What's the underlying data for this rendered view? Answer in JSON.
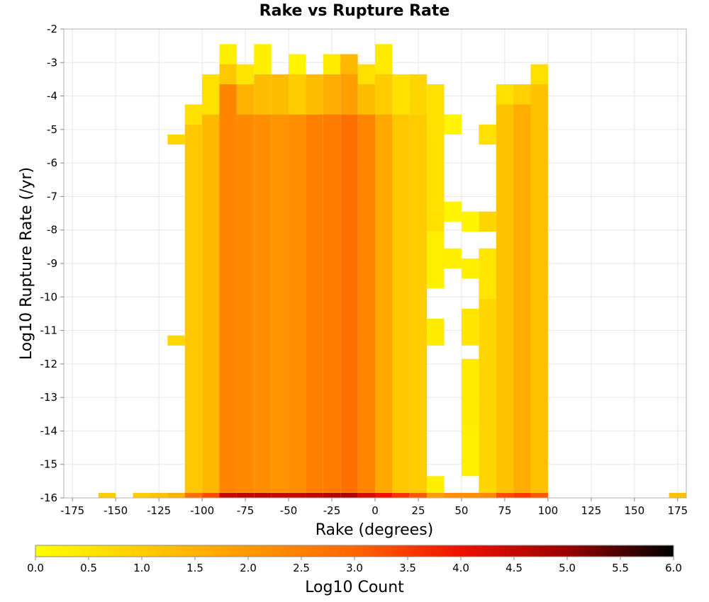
{
  "chart_data": {
    "type": "heatmap",
    "title": "Rake vs Rupture Rate",
    "xlabel": "Rake (degrees)",
    "ylabel": "Log10 Rupture Rate (/yr)",
    "colorbar_label": "Log10 Count",
    "xlim": [
      -180,
      180
    ],
    "ylim": [
      -16,
      -2
    ],
    "clim": [
      0,
      6
    ],
    "x_bin_width": 10,
    "y_bin_width": 0.3,
    "grid": true,
    "colormap": [
      "#ffff00",
      "#ffcc00",
      "#ff9900",
      "#ff6600",
      "#ee1100",
      "#990000",
      "#000000"
    ],
    "x_ticks": [
      "-175",
      "-150",
      "-125",
      "-100",
      "-75",
      "-50",
      "-25",
      "0",
      "25",
      "50",
      "75",
      "100",
      "125",
      "150",
      "175"
    ],
    "y_ticks": [
      "-2",
      "-3",
      "-4",
      "-5",
      "-6",
      "-7",
      "-8",
      "-9",
      "-10",
      "-11",
      "-12",
      "-13",
      "-14",
      "-15",
      "-16"
    ],
    "colorbar_ticks": [
      "0.0",
      "0.5",
      "1.0",
      "1.5",
      "2.0",
      "2.5",
      "3.0",
      "3.5",
      "4.0",
      "4.5",
      "5.0",
      "5.5",
      "6.0"
    ],
    "columns": [
      {
        "x": -155,
        "segments": [
          [
            -16,
            -16,
            1.0
          ]
        ]
      },
      {
        "x": -135,
        "segments": [
          [
            -16,
            -16,
            1.0
          ]
        ]
      },
      {
        "x": -125,
        "segments": [
          [
            -16,
            -16,
            1.2
          ]
        ]
      },
      {
        "x": -115,
        "segments": [
          [
            -16,
            -16,
            1.5
          ],
          [
            -11.3,
            -11.3,
            0.8
          ],
          [
            -5.3,
            -5.3,
            0.8
          ]
        ]
      },
      {
        "x": -105,
        "segments": [
          [
            -16,
            -16,
            2.8
          ],
          [
            -15.8,
            -5,
            1.1
          ],
          [
            -4.7,
            -4.4,
            0.6
          ]
        ]
      },
      {
        "x": -95,
        "segments": [
          [
            -16,
            -16,
            3.3
          ],
          [
            -15.8,
            -4.7,
            1.4
          ],
          [
            -4.4,
            -3.5,
            0.6
          ]
        ]
      },
      {
        "x": -85,
        "segments": [
          [
            -16,
            -16,
            4.5
          ],
          [
            -15.8,
            -3.8,
            2.4
          ],
          [
            -3.5,
            -3.0,
            1.1
          ],
          [
            -2.9,
            -2.6,
            0.3
          ]
        ]
      },
      {
        "x": -75,
        "segments": [
          [
            -16,
            -16,
            4.6
          ],
          [
            -15.8,
            -4.7,
            2.3
          ],
          [
            -4.4,
            -3.8,
            1.5
          ],
          [
            -3.5,
            -3.2,
            0.5
          ]
        ]
      },
      {
        "x": -65,
        "segments": [
          [
            -16,
            -16,
            4.6
          ],
          [
            -15.8,
            -4.7,
            2.2
          ],
          [
            -4.4,
            -3.5,
            1.3
          ],
          [
            -3.2,
            -2.6,
            0.3
          ]
        ]
      },
      {
        "x": -55,
        "segments": [
          [
            -16,
            -16,
            4.5
          ],
          [
            -15.8,
            -4.7,
            2.1
          ],
          [
            -4.4,
            -3.5,
            1.3
          ]
        ]
      },
      {
        "x": -45,
        "segments": [
          [
            -16,
            -16,
            4.5
          ],
          [
            -15.8,
            -4.7,
            2.2
          ],
          [
            -4.4,
            -3.2,
            1.0
          ],
          [
            -3.2,
            -2.9,
            0.2
          ]
        ]
      },
      {
        "x": -35,
        "segments": [
          [
            -16,
            -16,
            4.6
          ],
          [
            -15.8,
            -4.7,
            2.5
          ],
          [
            -4.4,
            -3.5,
            1.3
          ]
        ]
      },
      {
        "x": -25,
        "segments": [
          [
            -16,
            -16,
            4.7
          ],
          [
            -15.8,
            -4.7,
            2.6
          ],
          [
            -4.4,
            -3.5,
            1.6
          ],
          [
            -3.2,
            -2.9,
            0.4
          ]
        ]
      },
      {
        "x": -15,
        "segments": [
          [
            -16,
            -16,
            4.8
          ],
          [
            -15.8,
            -4.7,
            2.8
          ],
          [
            -4.4,
            -3.2,
            1.9
          ],
          [
            -3.2,
            -2.9,
            1.4
          ]
        ]
      },
      {
        "x": -5,
        "segments": [
          [
            -16,
            -16,
            4.3
          ],
          [
            -15.8,
            -4.7,
            2.4
          ],
          [
            -4.4,
            -3.5,
            1.3
          ],
          [
            -3.5,
            -3.2,
            0.6
          ]
        ]
      },
      {
        "x": 5,
        "segments": [
          [
            -16,
            -16,
            4.0
          ],
          [
            -15.8,
            -4.7,
            1.7
          ],
          [
            -4.4,
            -3.2,
            1.0
          ],
          [
            -3.2,
            -2.6,
            0.4
          ]
        ]
      },
      {
        "x": 15,
        "segments": [
          [
            -16,
            -16,
            3.6
          ],
          [
            -15.8,
            -4.7,
            1.1
          ],
          [
            -4.4,
            -3.5,
            0.6
          ]
        ]
      },
      {
        "x": 25,
        "segments": [
          [
            -16,
            -16,
            3.1
          ],
          [
            -15.8,
            -4.7,
            1.0
          ],
          [
            -4.4,
            -3.5,
            0.8
          ]
        ]
      },
      {
        "x": 35,
        "segments": [
          [
            -16,
            -16,
            1.9
          ],
          [
            -15.8,
            -15.5,
            0.3
          ],
          [
            -11.3,
            -10.8,
            0.4
          ],
          [
            -9.6,
            -8.2,
            0.3
          ],
          [
            -7.9,
            -7.6,
            0.6
          ],
          [
            -7.3,
            -5.3,
            0.6
          ],
          [
            -5.0,
            -3.8,
            0.6
          ]
        ]
      },
      {
        "x": 45,
        "segments": [
          [
            -16,
            -16,
            2.2
          ],
          [
            -9.0,
            -8.7,
            0.3
          ],
          [
            -7.6,
            -7.3,
            0.2
          ],
          [
            -5.0,
            -4.7,
            0.2
          ]
        ]
      },
      {
        "x": 55,
        "segments": [
          [
            -16,
            -16,
            2.2
          ],
          [
            -15.2,
            -14.0,
            0.3
          ],
          [
            -13.7,
            -12.0,
            0.4
          ],
          [
            -11.3,
            -10.5,
            0.5
          ],
          [
            -9.3,
            -9.0,
            0.3
          ],
          [
            -7.9,
            -7.6,
            0.2
          ]
        ]
      },
      {
        "x": 65,
        "segments": [
          [
            -16,
            -16,
            2.3
          ],
          [
            -15.8,
            -10.2,
            0.8
          ],
          [
            -9.9,
            -8.7,
            0.5
          ],
          [
            -7.9,
            -7.6,
            0.8
          ],
          [
            -5.3,
            -5.0,
            0.6
          ]
        ]
      },
      {
        "x": 75,
        "segments": [
          [
            -16,
            -16,
            3.3
          ],
          [
            -15.8,
            -4.1,
            1.2
          ],
          [
            -4.1,
            -3.8,
            0.6
          ]
        ]
      },
      {
        "x": 85,
        "segments": [
          [
            -16,
            -16,
            3.5
          ],
          [
            -15.8,
            -4.1,
            1.6
          ],
          [
            -4.1,
            -3.8,
            0.9
          ]
        ]
      },
      {
        "x": 95,
        "segments": [
          [
            -16,
            -16,
            3.1
          ],
          [
            -15.8,
            -3.8,
            1.2
          ],
          [
            -3.5,
            -3.2,
            0.6
          ]
        ]
      },
      {
        "x": 175,
        "segments": [
          [
            -16,
            -16,
            1.2
          ]
        ]
      }
    ]
  }
}
